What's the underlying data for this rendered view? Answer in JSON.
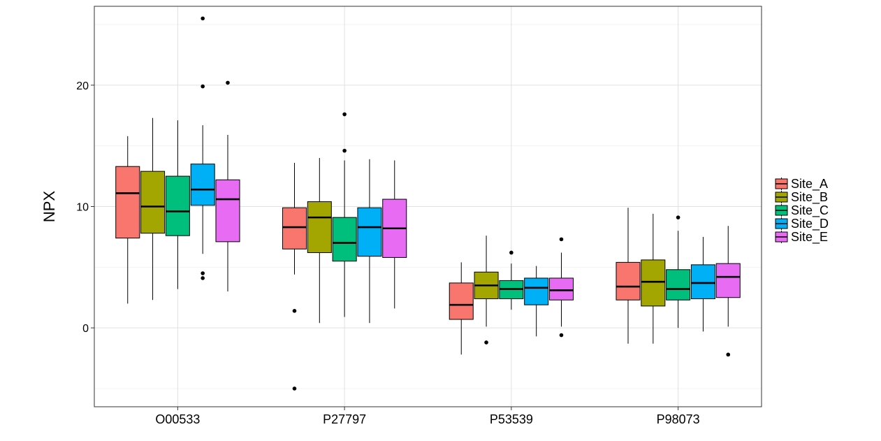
{
  "chart_data": {
    "type": "boxplot",
    "xlabel": "",
    "ylabel": "NPX",
    "ylim": [
      -6.5,
      26.5
    ],
    "yticks": [
      0,
      10,
      20
    ],
    "grid": true,
    "legend_position": "right",
    "categories": [
      "O00533",
      "P27797",
      "P53539",
      "P98073"
    ],
    "series": [
      {
        "name": "Site_A",
        "color": "#F8766D",
        "boxes": [
          {
            "q1": 7.4,
            "median": 11.1,
            "q3": 13.3,
            "lo": 2.0,
            "hi": 15.8,
            "outliers": []
          },
          {
            "q1": 6.5,
            "median": 8.3,
            "q3": 9.9,
            "lo": 4.4,
            "hi": 13.6,
            "outliers": [
              1.4,
              -5.0
            ]
          },
          {
            "q1": 0.7,
            "median": 1.9,
            "q3": 3.7,
            "lo": -2.2,
            "hi": 5.4,
            "outliers": []
          },
          {
            "q1": 2.3,
            "median": 3.4,
            "q3": 5.4,
            "lo": -1.3,
            "hi": 9.9,
            "outliers": []
          }
        ]
      },
      {
        "name": "Site_B",
        "color": "#A3A500",
        "boxes": [
          {
            "q1": 7.8,
            "median": 10.0,
            "q3": 12.9,
            "lo": 2.3,
            "hi": 17.3,
            "outliers": []
          },
          {
            "q1": 6.2,
            "median": 9.1,
            "q3": 10.4,
            "lo": 0.4,
            "hi": 14.0,
            "outliers": []
          },
          {
            "q1": 2.4,
            "median": 3.5,
            "q3": 4.6,
            "lo": 0.1,
            "hi": 7.6,
            "outliers": [
              -1.2
            ]
          },
          {
            "q1": 1.8,
            "median": 3.8,
            "q3": 5.6,
            "lo": -1.3,
            "hi": 9.4,
            "outliers": []
          }
        ]
      },
      {
        "name": "Site_C",
        "color": "#00BF7D",
        "boxes": [
          {
            "q1": 7.6,
            "median": 9.6,
            "q3": 12.5,
            "lo": 3.2,
            "hi": 17.1,
            "outliers": []
          },
          {
            "q1": 5.5,
            "median": 7.0,
            "q3": 9.1,
            "lo": 0.9,
            "hi": 13.8,
            "outliers": [
              14.6,
              17.6
            ]
          },
          {
            "q1": 2.4,
            "median": 3.2,
            "q3": 3.9,
            "lo": 1.5,
            "hi": 5.3,
            "outliers": [
              6.2
            ]
          },
          {
            "q1": 2.3,
            "median": 3.2,
            "q3": 4.8,
            "lo": 0.0,
            "hi": 8.0,
            "outliers": [
              9.1
            ]
          }
        ]
      },
      {
        "name": "Site_D",
        "color": "#00B0F6",
        "boxes": [
          {
            "q1": 10.1,
            "median": 11.4,
            "q3": 13.5,
            "lo": 6.1,
            "hi": 16.7,
            "outliers": [
              19.9,
              25.5,
              4.5,
              4.1
            ]
          },
          {
            "q1": 5.9,
            "median": 8.3,
            "q3": 9.9,
            "lo": 0.4,
            "hi": 13.9,
            "outliers": []
          },
          {
            "q1": 1.9,
            "median": 3.3,
            "q3": 4.1,
            "lo": -0.7,
            "hi": 5.1,
            "outliers": []
          },
          {
            "q1": 2.4,
            "median": 3.7,
            "q3": 5.2,
            "lo": -0.3,
            "hi": 7.5,
            "outliers": []
          }
        ]
      },
      {
        "name": "Site_E",
        "color": "#E76BF3",
        "boxes": [
          {
            "q1": 7.1,
            "median": 10.6,
            "q3": 12.2,
            "lo": 3.0,
            "hi": 15.9,
            "outliers": [
              20.2
            ]
          },
          {
            "q1": 5.8,
            "median": 8.2,
            "q3": 10.6,
            "lo": 1.6,
            "hi": 13.8,
            "outliers": []
          },
          {
            "q1": 2.3,
            "median": 3.1,
            "q3": 4.1,
            "lo": 0.1,
            "hi": 6.2,
            "outliers": [
              7.3,
              -0.6
            ]
          },
          {
            "q1": 2.5,
            "median": 4.2,
            "q3": 5.3,
            "lo": 0.1,
            "hi": 8.4,
            "outliers": [
              -2.2
            ]
          }
        ]
      }
    ]
  }
}
